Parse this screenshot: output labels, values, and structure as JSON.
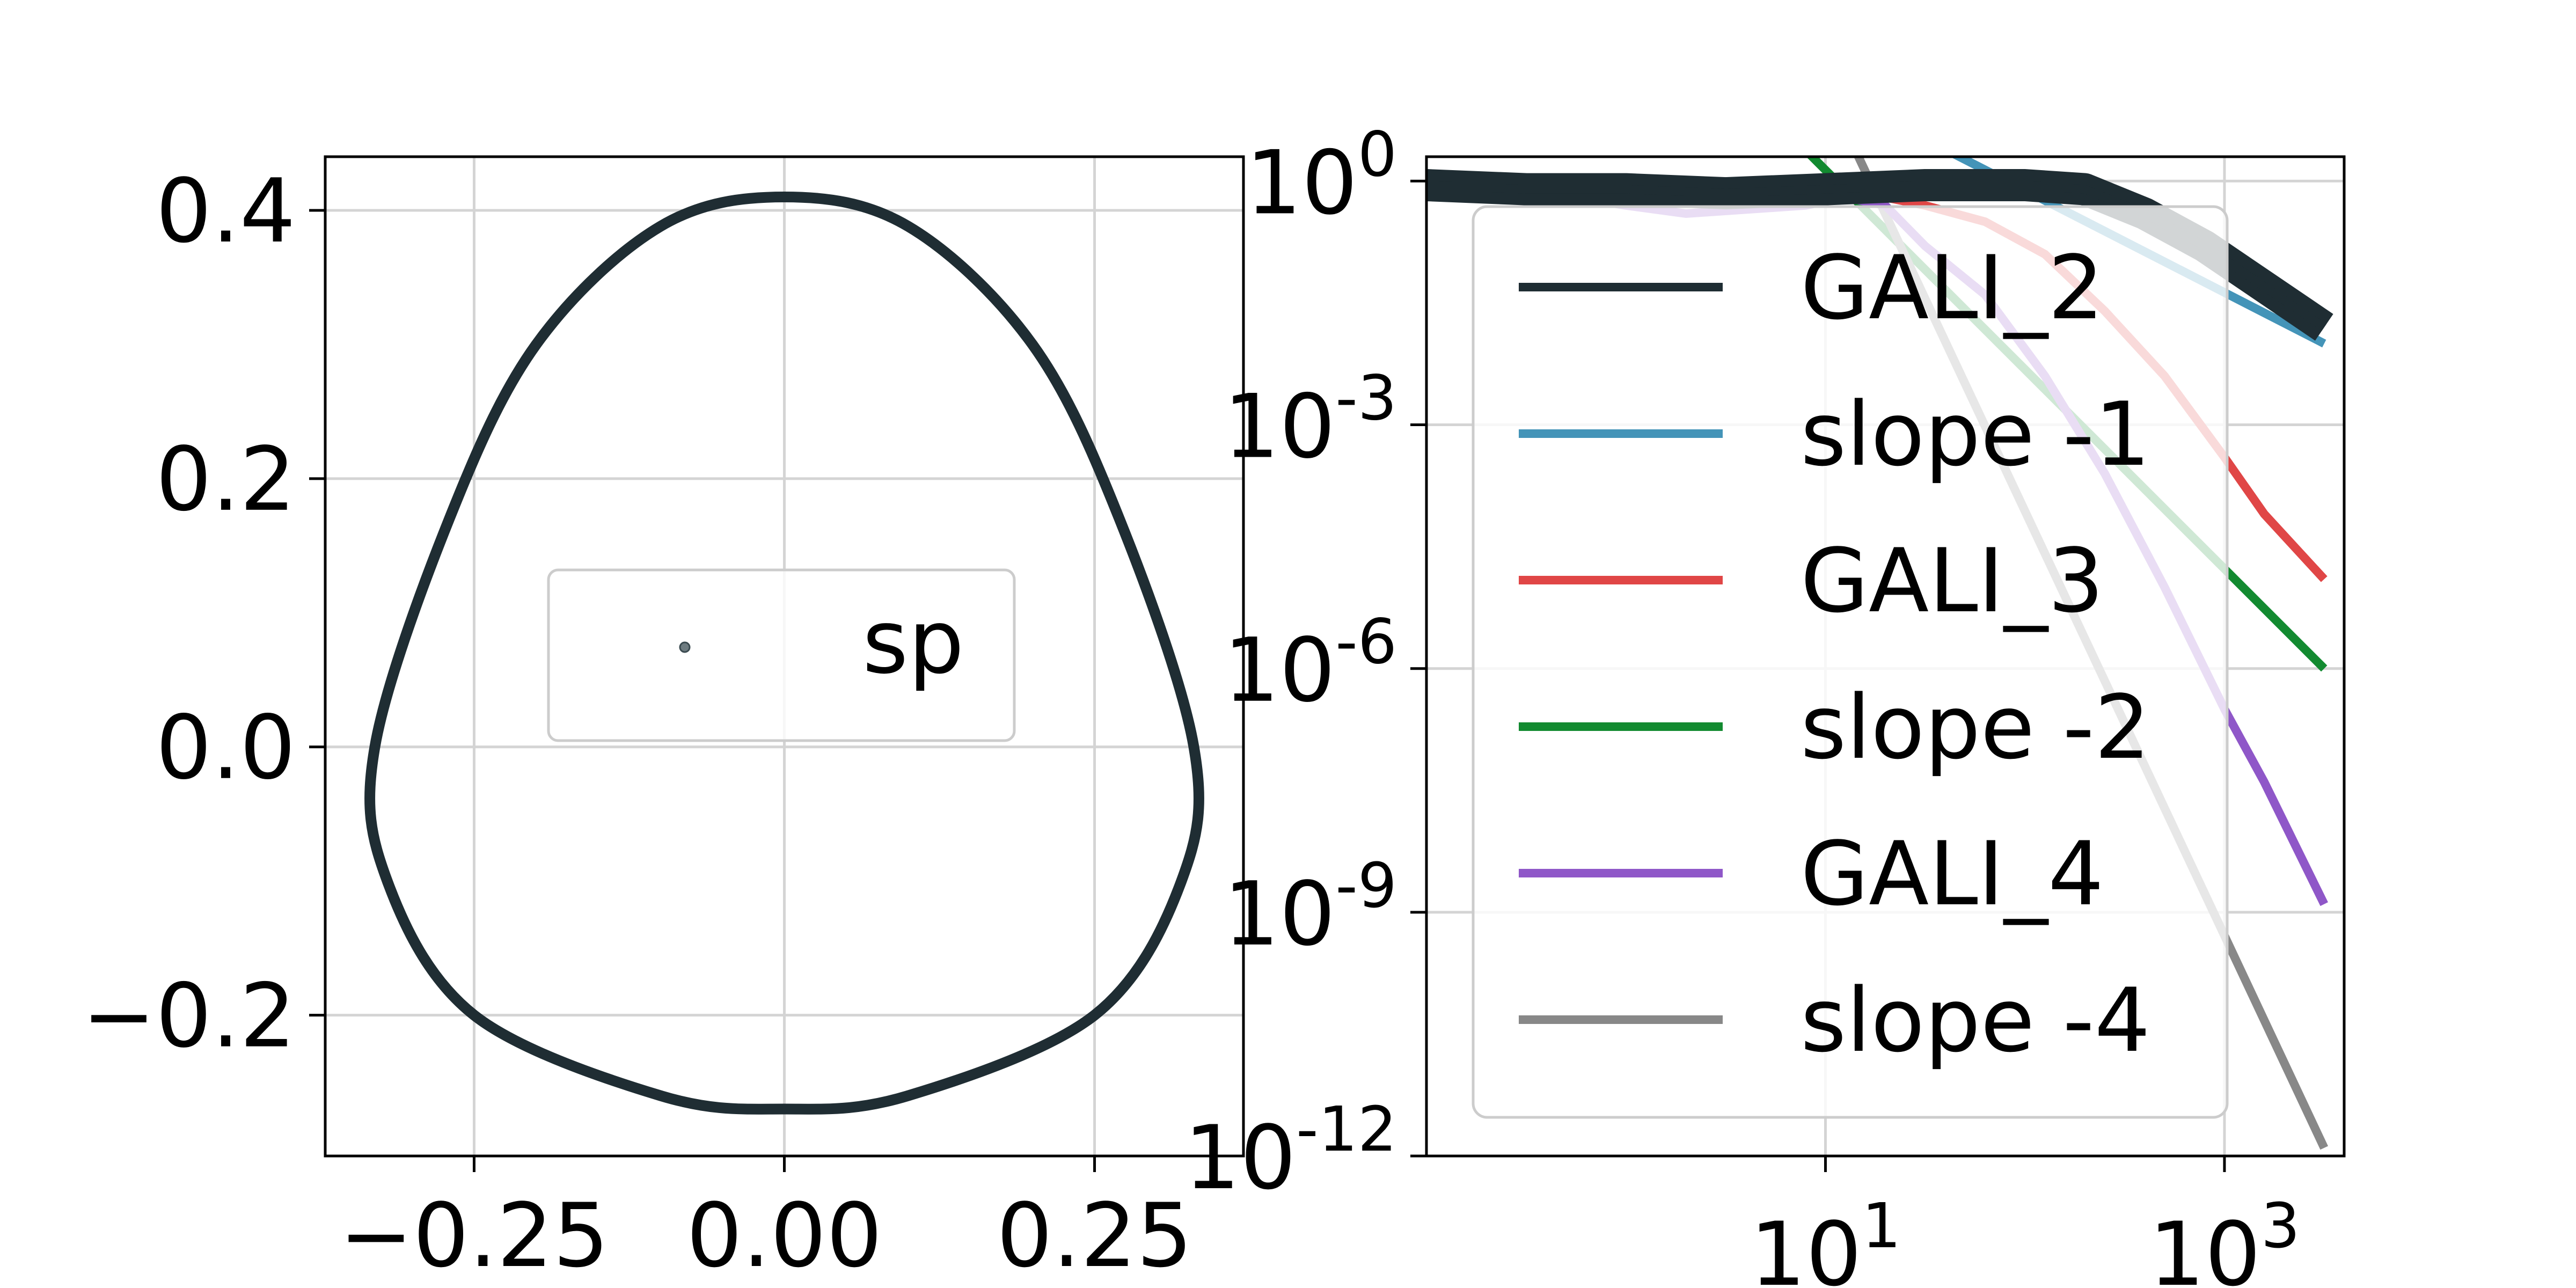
{
  "chart_data": [
    {
      "type": "line",
      "title": "",
      "xlabel": "",
      "ylabel": "",
      "xlim": [
        -0.37,
        0.37
      ],
      "ylim": [
        -0.305,
        0.44
      ],
      "grid": true,
      "xticks": [
        -0.25,
        0.0,
        0.25
      ],
      "xtick_labels": [
        "−0.25",
        "0.00",
        "0.25"
      ],
      "yticks": [
        -0.2,
        0.0,
        0.2,
        0.4
      ],
      "ytick_labels": [
        "−0.2",
        "0.0",
        "0.2",
        "0.4"
      ],
      "legend": {
        "placement": "center",
        "entries": [
          {
            "label": "sp",
            "marker": "dot"
          }
        ]
      },
      "series": [
        {
          "name": "sp",
          "color": "#1f2d33",
          "curve": "closed",
          "points": [
            [
              0.0,
              0.41
            ],
            [
              0.1,
              0.388
            ],
            [
              0.2,
              0.3
            ],
            [
              0.27,
              0.17
            ],
            [
              0.33,
              0.0
            ],
            [
              0.32,
              -0.1
            ],
            [
              0.25,
              -0.2
            ],
            [
              0.1,
              -0.26
            ],
            [
              0.0,
              -0.27
            ],
            [
              -0.1,
              -0.26
            ],
            [
              -0.25,
              -0.2
            ],
            [
              -0.32,
              -0.1
            ],
            [
              -0.33,
              0.0
            ],
            [
              -0.27,
              0.17
            ],
            [
              -0.2,
              0.3
            ],
            [
              -0.1,
              0.388
            ]
          ]
        }
      ]
    },
    {
      "type": "line",
      "title": "",
      "xlabel": "",
      "ylabel": "",
      "xscale": "log",
      "yscale": "log",
      "xlim_log10": [
        -1,
        3.6
      ],
      "ylim_log10": [
        -12,
        0.3
      ],
      "grid": true,
      "xticks_log10": [
        1,
        3
      ],
      "xtick_labels": [
        {
          "base": "10",
          "exp": "1"
        },
        {
          "base": "10",
          "exp": "3"
        }
      ],
      "yticks_log10": [
        0,
        -3,
        -6,
        -9,
        -12
      ],
      "ytick_labels": [
        {
          "base": "10",
          "exp": "0"
        },
        {
          "base": "10",
          "exp": "-3"
        },
        {
          "base": "10",
          "exp": "-6"
        },
        {
          "base": "10",
          "exp": "-9"
        },
        {
          "base": "10",
          "exp": "-12"
        }
      ],
      "legend": {
        "placement": "center",
        "entries": [
          {
            "label": "GALI_2",
            "color": "#1f2d33"
          },
          {
            "label": "slope -1",
            "color": "#4494b8"
          },
          {
            "label": "GALI_3",
            "color": "#e04646"
          },
          {
            "label": "slope -2",
            "color": "#128a30"
          },
          {
            "label": "GALI_4",
            "color": "#8f57c8"
          },
          {
            "label": "slope -4",
            "color": "#888888"
          }
        ]
      },
      "series": [
        {
          "name": "slope -1",
          "color": "#4494b8",
          "x_log10": [
            0.2,
            3.5
          ],
          "y_log10": [
            2.15,
            -2.0
          ]
        },
        {
          "name": "slope -2",
          "color": "#128a30",
          "x_log10": [
            0.2,
            3.5
          ],
          "y_log10": [
            2.1,
            -6.0
          ]
        },
        {
          "name": "slope -4",
          "color": "#888888",
          "x_log10": [
            0.4,
            3.5
          ],
          "y_log10": [
            4.3,
            -11.9
          ]
        },
        {
          "name": "GALI_4",
          "color": "#8f57c8",
          "x_log10": [
            -1,
            -0.5,
            0,
            0.3,
            0.6,
            0.9,
            1.1,
            1.3,
            1.5,
            1.8,
            2.1,
            2.4,
            2.7,
            3.0,
            3.2,
            3.5
          ],
          "y_log10": [
            -0.15,
            -0.1,
            -0.3,
            -0.4,
            -0.35,
            -0.3,
            -0.2,
            -0.3,
            -0.8,
            -1.4,
            -2.4,
            -3.6,
            -5.0,
            -6.5,
            -7.4,
            -8.9
          ]
        },
        {
          "name": "GALI_3",
          "color": "#e04646",
          "x_log10": [
            -1,
            -0.5,
            0,
            0.3,
            0.6,
            0.9,
            1.1,
            1.3,
            1.5,
            1.8,
            2.1,
            2.4,
            2.7,
            3.0,
            3.2,
            3.5
          ],
          "y_log10": [
            -0.05,
            0.0,
            -0.05,
            -0.1,
            -0.2,
            -0.15,
            -0.1,
            -0.2,
            -0.3,
            -0.5,
            -0.9,
            -1.6,
            -2.4,
            -3.4,
            -4.1,
            -4.9
          ]
        },
        {
          "name": "GALI_2",
          "color": "#1f2d33",
          "band": true,
          "x_log10": [
            -1,
            -0.5,
            0,
            0.5,
            1.0,
            1.5,
            2.0,
            2.3,
            2.6,
            2.9,
            3.2,
            3.5
          ],
          "y_log10": [
            -0.05,
            -0.1,
            -0.1,
            -0.15,
            -0.1,
            -0.05,
            -0.05,
            -0.1,
            -0.4,
            -0.8,
            -1.3,
            -1.8
          ]
        }
      ]
    }
  ]
}
